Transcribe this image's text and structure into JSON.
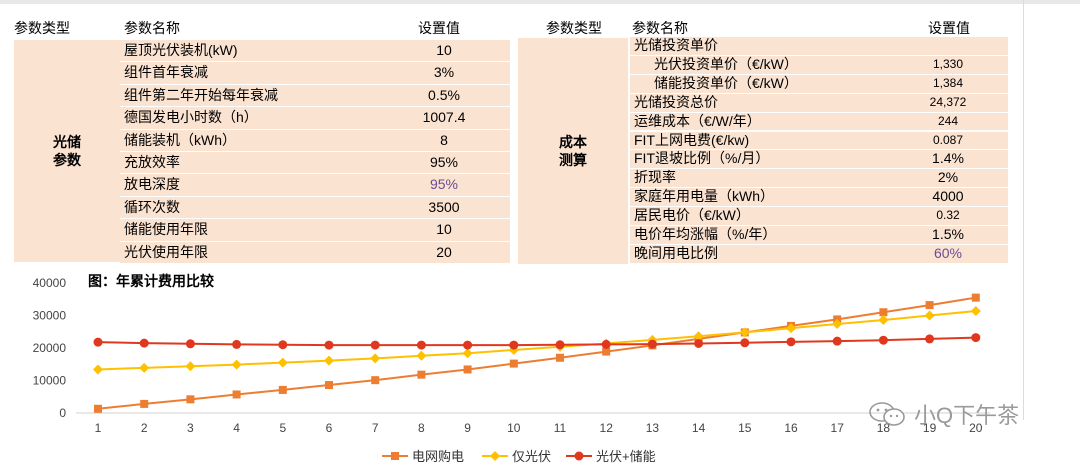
{
  "left_table": {
    "headers": {
      "type": "参数类型",
      "name": "参数名称",
      "value": "设置值"
    },
    "category": "光储\n参数",
    "rows": [
      {
        "name": "屋顶光伏装机(kW)",
        "value": "10"
      },
      {
        "name": "组件首年衰减",
        "value": "3%"
      },
      {
        "name": "组件第二年开始每年衰减",
        "value": "0.5%"
      },
      {
        "name": "德国发电小时数（h）",
        "value": "1007.4"
      },
      {
        "name": "储能装机（kWh）",
        "value": "8"
      },
      {
        "name": "充放效率",
        "value": "95%"
      },
      {
        "name": "放电深度",
        "value": "95%",
        "highlight": true
      },
      {
        "name": "循环次数",
        "value": "3500"
      },
      {
        "name": "储能使用年限",
        "value": "10"
      },
      {
        "name": "光伏使用年限",
        "value": "20"
      }
    ]
  },
  "right_table": {
    "headers": {
      "type": "参数类型",
      "name": "参数名称",
      "value": "设置值"
    },
    "category": "成本\n测算",
    "rows": [
      {
        "name": "光储投资单价",
        "value": ""
      },
      {
        "name": "光伏投资单价（€/kW）",
        "value": "1,330",
        "indent": true,
        "small": true
      },
      {
        "name": "储能投资单价（€/kW）",
        "value": "1,384",
        "indent": true,
        "small": true
      },
      {
        "name": "光储投资总价",
        "value": "24,372",
        "small": true
      },
      {
        "name": "运维成本（€/W/年）",
        "value": "244",
        "small": true
      },
      {
        "name": "FIT上网电费(€/kw)",
        "value": "0.087",
        "small": true
      },
      {
        "name": "FIT退坡比例（%/月）",
        "value": "1.4%"
      },
      {
        "name": "折现率",
        "value": "2%"
      },
      {
        "name": "家庭年用电量（kWh）",
        "value": "4000"
      },
      {
        "name": "居民电价（€/kW）",
        "value": "0.32",
        "small": true
      },
      {
        "name": "电价年均涨幅（%/年）",
        "value": "1.5%"
      },
      {
        "name": "晚间用电比例",
        "value": "60%",
        "highlight": true
      }
    ]
  },
  "chart_data": {
    "type": "line",
    "title": "图：年累计费用比较",
    "categories": [
      "1",
      "2",
      "3",
      "4",
      "5",
      "6",
      "7",
      "8",
      "9",
      "10",
      "11",
      "12",
      "13",
      "14",
      "15",
      "16",
      "17",
      "18",
      "19",
      "20"
    ],
    "ylim": [
      0,
      40000
    ],
    "yticks": [
      "0",
      "10000",
      "20000",
      "30000",
      "40000"
    ],
    "grid": false,
    "legend_position": "bottom",
    "series": [
      {
        "name": "电网购电",
        "color": "#ed7d31",
        "marker": "square",
        "values": [
          1300,
          2800,
          4200,
          5700,
          7100,
          8600,
          10100,
          11800,
          13400,
          15200,
          17000,
          18900,
          20800,
          22800,
          24800,
          26800,
          28800,
          31000,
          33200,
          35500
        ]
      },
      {
        "name": "仅光伏",
        "color": "#ffc000",
        "marker": "diamond",
        "values": [
          13400,
          13900,
          14400,
          14900,
          15500,
          16100,
          16800,
          17600,
          18400,
          19400,
          20400,
          21400,
          22500,
          23600,
          24800,
          26100,
          27400,
          28600,
          30000,
          31400
        ]
      },
      {
        "name": "光伏+储能",
        "color": "#e0381f",
        "marker": "circle",
        "values": [
          21800,
          21500,
          21300,
          21100,
          21000,
          20900,
          20900,
          20900,
          20900,
          20900,
          21000,
          21100,
          21200,
          21400,
          21600,
          21900,
          22100,
          22400,
          22800,
          23200
        ]
      }
    ]
  },
  "watermark": {
    "text": "小Q下午茶",
    "icon": "wechat-icon"
  }
}
